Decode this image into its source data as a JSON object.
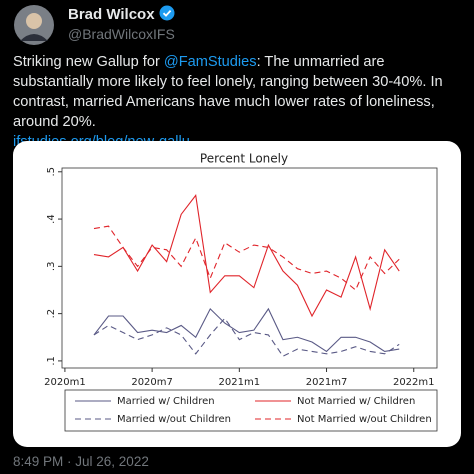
{
  "author": {
    "name": "Brad Wilcox",
    "handle": "@BradWilcoxIFS"
  },
  "tweet": {
    "text_parts": [
      "Striking new Gallup for ",
      "@FamStudies",
      ": The unmarried are substantially more likely to feel lonely, ranging between 30-40%. In contrast, married Americans have much lower rates of loneliness, around 20%."
    ],
    "link": "ifstudies.org/blog/new-gallu…"
  },
  "timestamp": "8:49 PM · Jul 26, 2022",
  "chart_data": {
    "type": "line",
    "title": "Percent Lonely",
    "x": [
      2,
      3,
      4,
      5,
      6,
      7,
      8,
      9,
      10,
      11,
      12,
      13,
      14,
      15,
      16,
      17,
      18,
      19,
      20,
      21,
      22,
      23
    ],
    "xlim": [
      -0.2,
      25.6
    ],
    "xticks": [
      {
        "value": 0,
        "label": "2020m1"
      },
      {
        "value": 6,
        "label": "2020m7"
      },
      {
        "value": 12,
        "label": "2021m1"
      },
      {
        "value": 18,
        "label": "2021m7"
      },
      {
        "value": 24,
        "label": "2022m1"
      }
    ],
    "ylim": [
      0.085,
      0.508
    ],
    "yticks": [
      {
        "value": 0.1,
        "label": ".1"
      },
      {
        "value": 0.2,
        "label": ".2"
      },
      {
        "value": 0.3,
        "label": ".3"
      },
      {
        "value": 0.4,
        "label": ".4"
      },
      {
        "value": 0.5,
        "label": ".5"
      }
    ],
    "series": [
      {
        "name": "Married w/ Children",
        "color": "#5a5a86",
        "dash": false,
        "values": [
          0.155,
          0.195,
          0.195,
          0.16,
          0.165,
          0.16,
          0.175,
          0.15,
          0.21,
          0.18,
          0.16,
          0.165,
          0.21,
          0.145,
          0.15,
          0.14,
          0.12,
          0.15,
          0.15,
          0.14,
          0.12,
          0.125
        ]
      },
      {
        "name": "Not Married w/ Children",
        "color": "#e0242a",
        "dash": false,
        "values": [
          0.325,
          0.32,
          0.34,
          0.29,
          0.345,
          0.31,
          0.41,
          0.45,
          0.245,
          0.28,
          0.28,
          0.255,
          0.345,
          0.29,
          0.26,
          0.195,
          0.25,
          0.235,
          0.32,
          0.21,
          0.335,
          0.29
        ]
      },
      {
        "name": "Married w/out Children",
        "color": "#5a5a86",
        "dash": true,
        "values": [
          0.155,
          0.175,
          0.16,
          0.145,
          0.155,
          0.17,
          0.155,
          0.115,
          0.155,
          0.19,
          0.145,
          0.16,
          0.155,
          0.11,
          0.125,
          0.12,
          0.115,
          0.12,
          0.13,
          0.12,
          0.115,
          0.135
        ]
      },
      {
        "name": "Not Married w/out Children",
        "color": "#e0242a",
        "dash": true,
        "values": [
          0.38,
          0.385,
          0.34,
          0.3,
          0.34,
          0.335,
          0.3,
          0.36,
          0.275,
          0.35,
          0.33,
          0.345,
          0.34,
          0.32,
          0.295,
          0.285,
          0.29,
          0.275,
          0.25,
          0.32,
          0.285,
          0.315
        ]
      }
    ]
  }
}
